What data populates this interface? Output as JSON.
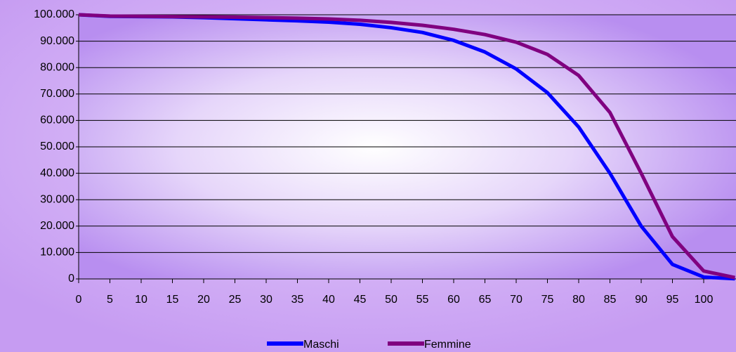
{
  "chart_data": {
    "type": "line",
    "x": [
      0,
      5,
      10,
      15,
      20,
      25,
      30,
      35,
      40,
      45,
      50,
      55,
      60,
      65,
      70,
      75,
      80,
      85,
      90,
      95,
      100,
      105
    ],
    "series": [
      {
        "name": "Maschi",
        "color": "#0000ff",
        "values": [
          100000,
          99400,
          99300,
          99200,
          98900,
          98500,
          98100,
          97700,
          97200,
          96400,
          95100,
          93300,
          90300,
          85900,
          79500,
          70500,
          57500,
          40000,
          20000,
          5500,
          700,
          50
        ]
      },
      {
        "name": "Femmine",
        "color": "#800080",
        "values": [
          100000,
          99500,
          99400,
          99300,
          99200,
          99100,
          98900,
          98700,
          98400,
          97900,
          97100,
          96000,
          94500,
          92500,
          89600,
          85000,
          77000,
          63000,
          40000,
          16000,
          3000,
          500
        ]
      }
    ],
    "xlim": [
      0,
      105
    ],
    "xticks": [
      0,
      5,
      10,
      15,
      20,
      25,
      30,
      35,
      40,
      45,
      50,
      55,
      60,
      65,
      70,
      75,
      80,
      85,
      90,
      95,
      100
    ],
    "ylim": [
      0,
      100000
    ],
    "yticks": [
      0,
      {
        "value": 10000,
        "label": "10.000"
      },
      {
        "value": 20000,
        "label": "20.000"
      },
      {
        "value": 30000,
        "label": "30.000"
      },
      {
        "value": 40000,
        "label": "40.000"
      },
      {
        "value": 50000,
        "label": "50.000"
      },
      {
        "value": 60000,
        "label": "60.000"
      },
      {
        "value": 70000,
        "label": "70.000"
      },
      {
        "value": 80000,
        "label": "80.000"
      },
      {
        "value": 90000,
        "label": "90.000"
      },
      {
        "value": 100000,
        "label": "100.000"
      }
    ],
    "grid": true,
    "legend": "bottom"
  }
}
